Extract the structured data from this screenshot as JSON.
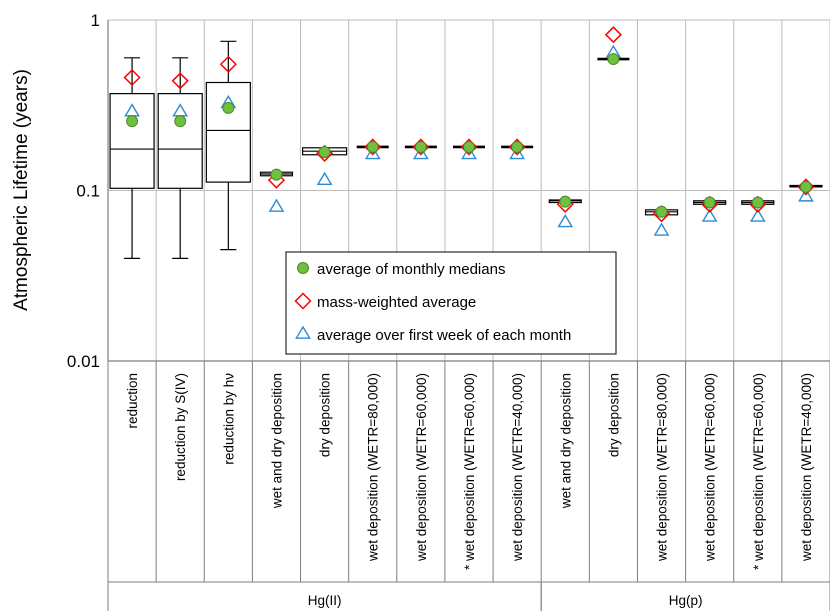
{
  "chart_data": {
    "type": "box",
    "ylabel": "Atmospheric Lifetime (years)",
    "yscale": "log",
    "ylim": [
      0.01,
      1
    ],
    "yticks": [
      "0.01",
      "0.1",
      "1"
    ],
    "grid": true,
    "legend_position": "center",
    "categories": [
      "reduction",
      "reduction by S(IV)",
      "reduction by hν",
      "wet and dry deposition",
      "dry deposition",
      "wet deposition (WETR=80,000)",
      "wet deposition (WETR=60,000)",
      "* wet deposition (WETR=60,000)",
      "wet deposition (WETR=40,000)",
      "wet and dry deposition",
      "dry deposition",
      "wet deposition (WETR=80,000)",
      "wet deposition (WETR=60,000)",
      "* wet deposition (WETR=60,000)",
      "wet deposition (WETR=40,000)"
    ],
    "groups": [
      {
        "name": "Hg(II)",
        "start": 0,
        "end": 8
      },
      {
        "name": "Hg(p)",
        "start": 9,
        "end": 14
      }
    ],
    "boxes": [
      {
        "whisker_low": 0.04,
        "q1": 0.103,
        "median": 0.175,
        "q3": 0.37,
        "whisker_high": 0.6
      },
      {
        "whisker_low": 0.04,
        "q1": 0.103,
        "median": 0.175,
        "q3": 0.37,
        "whisker_high": 0.6
      },
      {
        "whisker_low": 0.045,
        "q1": 0.112,
        "median": 0.225,
        "q3": 0.43,
        "whisker_high": 0.75
      },
      {
        "whisker_low": 0.122,
        "q1": 0.122,
        "median": 0.125,
        "q3": 0.128,
        "whisker_high": 0.128
      },
      {
        "whisker_low": 0.162,
        "q1": 0.162,
        "median": 0.17,
        "q3": 0.178,
        "whisker_high": 0.178
      },
      {
        "whisker_low": 0.18,
        "q1": 0.18,
        "median": 0.18,
        "q3": 0.18,
        "whisker_high": 0.18
      },
      {
        "whisker_low": 0.18,
        "q1": 0.18,
        "median": 0.18,
        "q3": 0.18,
        "whisker_high": 0.18
      },
      {
        "whisker_low": 0.18,
        "q1": 0.18,
        "median": 0.18,
        "q3": 0.18,
        "whisker_high": 0.18
      },
      {
        "whisker_low": 0.18,
        "q1": 0.18,
        "median": 0.18,
        "q3": 0.18,
        "whisker_high": 0.18
      },
      {
        "whisker_low": 0.085,
        "q1": 0.085,
        "median": 0.087,
        "q3": 0.088,
        "whisker_high": 0.088
      },
      {
        "whisker_low": 0.59,
        "q1": 0.59,
        "median": 0.59,
        "q3": 0.59,
        "whisker_high": 0.59
      },
      {
        "whisker_low": 0.072,
        "q1": 0.072,
        "median": 0.075,
        "q3": 0.077,
        "whisker_high": 0.077
      },
      {
        "whisker_low": 0.083,
        "q1": 0.083,
        "median": 0.085,
        "q3": 0.087,
        "whisker_high": 0.087
      },
      {
        "whisker_low": 0.083,
        "q1": 0.083,
        "median": 0.085,
        "q3": 0.087,
        "whisker_high": 0.087
      },
      {
        "whisker_low": 0.105,
        "q1": 0.105,
        "median": 0.106,
        "q3": 0.107,
        "whisker_high": 0.107
      }
    ],
    "series": [
      {
        "name": "average of monthly medians",
        "marker": "circle",
        "color": "#70bf40",
        "stroke": "#4a8a2a",
        "values": [
          0.255,
          0.255,
          0.305,
          0.124,
          0.168,
          0.18,
          0.18,
          0.18,
          0.18,
          0.086,
          0.59,
          0.075,
          0.085,
          0.085,
          0.105
        ]
      },
      {
        "name": "mass-weighted average",
        "marker": "diamond",
        "color": "#ff0000",
        "values": [
          0.46,
          0.44,
          0.55,
          0.115,
          0.165,
          0.18,
          0.18,
          0.18,
          0.18,
          0.083,
          0.82,
          0.073,
          0.083,
          0.083,
          0.105
        ]
      },
      {
        "name": "average over first week of each month",
        "marker": "triangle",
        "color": "#2e8bd6",
        "values": [
          0.29,
          0.29,
          0.325,
          0.08,
          0.115,
          0.163,
          0.163,
          0.163,
          0.163,
          0.065,
          0.64,
          0.058,
          0.07,
          0.07,
          0.092
        ]
      }
    ]
  }
}
